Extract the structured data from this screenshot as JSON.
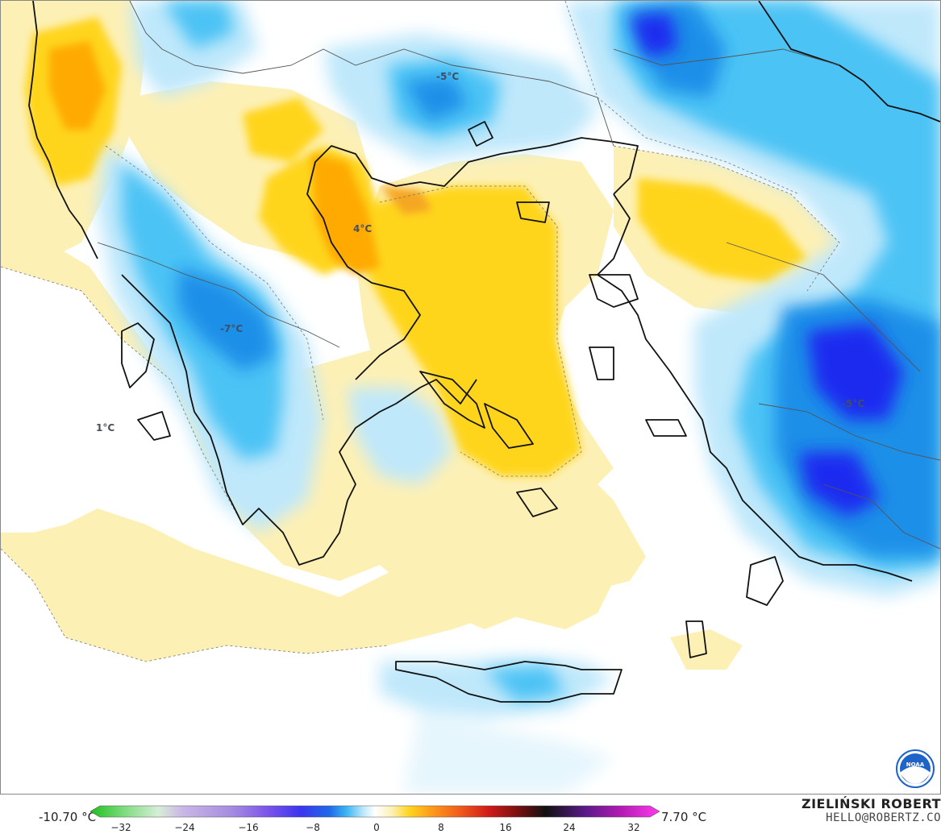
{
  "map": {
    "region": "Greece and Aegean Sea",
    "variable": "temperature anomaly",
    "contour_labels": [
      {
        "id": "n-bulgaria",
        "text": "-5°C"
      },
      {
        "id": "macedonia",
        "text": "4°C"
      },
      {
        "id": "pindus",
        "text": "-7°C"
      },
      {
        "id": "ionian",
        "text": "1°C"
      },
      {
        "id": "anatolia",
        "text": "-5°C"
      }
    ],
    "logo": "NOAA"
  },
  "legend": {
    "min_label": "-10.70 °C",
    "max_label": "7.70 °C",
    "ticks": [
      "−32",
      "−24",
      "−16",
      "−8",
      "0",
      "8",
      "16",
      "24",
      "32"
    ],
    "colors": {
      "cold_deep": "#1a2bf0",
      "cold": "#1e8fe8",
      "cool": "#4cc3f5",
      "light_cool": "#bfe8fb",
      "neutral": "#ffffff",
      "light_warm": "#fdf0b5",
      "warm": "#ffd51f",
      "hot": "#ffaa00",
      "hotter": "#f08a1a"
    }
  },
  "credits": {
    "author": "ZIELIŃSKI ROBERT",
    "email": "HELLO@ROBERTZ.CO"
  }
}
